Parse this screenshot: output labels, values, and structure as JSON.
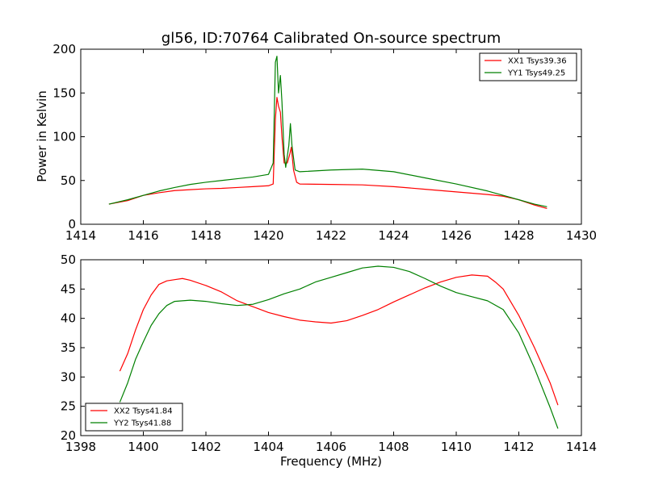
{
  "chart_data": [
    {
      "type": "line",
      "title": "gl56, ID:70764 Calibrated On-source spectrum",
      "xlabel": "",
      "ylabel": "Power in Kelvin",
      "xlim": [
        1414,
        1430
      ],
      "ylim": [
        0,
        200
      ],
      "xticks": [
        "1414",
        "1416",
        "1418",
        "1420",
        "1422",
        "1424",
        "1426",
        "1428",
        "1430"
      ],
      "yticks": [
        "0",
        "50",
        "100",
        "150",
        "200"
      ],
      "legend_position": "top-right",
      "series": [
        {
          "name": "XX1 Tsys39.36",
          "color": "#ff0000",
          "points": [
            [
              1414.9,
              23
            ],
            [
              1415.5,
              27
            ],
            [
              1416,
              33
            ],
            [
              1416.5,
              36
            ],
            [
              1417,
              38.5
            ],
            [
              1417.5,
              39.5
            ],
            [
              1418,
              40.5
            ],
            [
              1418.5,
              41
            ],
            [
              1419,
              42
            ],
            [
              1419.5,
              43
            ],
            [
              1420,
              44
            ],
            [
              1420.15,
              46
            ],
            [
              1420.22,
              120
            ],
            [
              1420.27,
              145
            ],
            [
              1420.32,
              135
            ],
            [
              1420.38,
              128
            ],
            [
              1420.43,
              100
            ],
            [
              1420.5,
              70
            ],
            [
              1420.6,
              70
            ],
            [
              1420.68,
              80
            ],
            [
              1420.73,
              88
            ],
            [
              1420.8,
              62
            ],
            [
              1420.9,
              48
            ],
            [
              1421,
              46
            ],
            [
              1422,
              45.5
            ],
            [
              1423,
              45
            ],
            [
              1424,
              43
            ],
            [
              1425,
              40
            ],
            [
              1426,
              37
            ],
            [
              1427,
              34
            ],
            [
              1427.5,
              32
            ],
            [
              1428,
              28
            ],
            [
              1428.5,
              22
            ],
            [
              1428.9,
              18
            ]
          ]
        },
        {
          "name": "YY1 Tsys49.25",
          "color": "#008000",
          "points": [
            [
              1414.9,
              23
            ],
            [
              1415.5,
              28
            ],
            [
              1416,
              33
            ],
            [
              1416.5,
              38
            ],
            [
              1417,
              42
            ],
            [
              1417.5,
              45.5
            ],
            [
              1418,
              48
            ],
            [
              1418.5,
              50
            ],
            [
              1419,
              52
            ],
            [
              1419.5,
              54
            ],
            [
              1420,
              57
            ],
            [
              1420.15,
              70
            ],
            [
              1420.22,
              185
            ],
            [
              1420.27,
              192
            ],
            [
              1420.32,
              150
            ],
            [
              1420.38,
              170
            ],
            [
              1420.43,
              140
            ],
            [
              1420.5,
              80
            ],
            [
              1420.55,
              65
            ],
            [
              1420.65,
              90
            ],
            [
              1420.7,
              115
            ],
            [
              1420.75,
              90
            ],
            [
              1420.85,
              62
            ],
            [
              1421,
              60
            ],
            [
              1422,
              62
            ],
            [
              1423,
              63
            ],
            [
              1424,
              60
            ],
            [
              1425,
              53
            ],
            [
              1426,
              46
            ],
            [
              1427,
              38
            ],
            [
              1427.5,
              33
            ],
            [
              1428,
              28
            ],
            [
              1428.5,
              23
            ],
            [
              1428.9,
              20
            ]
          ]
        }
      ]
    },
    {
      "type": "line",
      "title": "",
      "xlabel": "Frequency (MHz)",
      "ylabel": "",
      "xlim": [
        1398,
        1414
      ],
      "ylim": [
        20,
        50
      ],
      "xticks": [
        "1398",
        "1400",
        "1402",
        "1404",
        "1406",
        "1408",
        "1410",
        "1412",
        "1414"
      ],
      "yticks": [
        "20",
        "25",
        "30",
        "35",
        "40",
        "45",
        "50"
      ],
      "legend_position": "bottom-left",
      "series": [
        {
          "name": "XX2 Tsys41.84",
          "color": "#ff0000",
          "points": [
            [
              1399.25,
              31
            ],
            [
              1399.5,
              34
            ],
            [
              1399.75,
              38
            ],
            [
              1400,
              41.5
            ],
            [
              1400.25,
              44
            ],
            [
              1400.5,
              45.8
            ],
            [
              1400.75,
              46.4
            ],
            [
              1401,
              46.6
            ],
            [
              1401.25,
              46.8
            ],
            [
              1401.5,
              46.5
            ],
            [
              1402,
              45.6
            ],
            [
              1402.5,
              44.5
            ],
            [
              1403,
              43
            ],
            [
              1403.5,
              42
            ],
            [
              1404,
              41
            ],
            [
              1404.5,
              40.3
            ],
            [
              1405,
              39.7
            ],
            [
              1405.5,
              39.4
            ],
            [
              1406,
              39.2
            ],
            [
              1406.5,
              39.6
            ],
            [
              1407,
              40.5
            ],
            [
              1407.5,
              41.5
            ],
            [
              1408,
              42.8
            ],
            [
              1408.5,
              44
            ],
            [
              1409,
              45.2
            ],
            [
              1409.5,
              46.2
            ],
            [
              1410,
              47
            ],
            [
              1410.5,
              47.4
            ],
            [
              1411,
              47.2
            ],
            [
              1411.25,
              46.2
            ],
            [
              1411.5,
              45
            ],
            [
              1412,
              40.5
            ],
            [
              1412.5,
              35
            ],
            [
              1413,
              29
            ],
            [
              1413.25,
              25.2
            ]
          ]
        },
        {
          "name": "YY2 Tsys41.88",
          "color": "#008000",
          "points": [
            [
              1399.25,
              25.7
            ],
            [
              1399.5,
              29
            ],
            [
              1399.75,
              33
            ],
            [
              1400,
              36
            ],
            [
              1400.25,
              38.8
            ],
            [
              1400.5,
              40.8
            ],
            [
              1400.75,
              42.2
            ],
            [
              1401,
              42.9
            ],
            [
              1401.5,
              43.1
            ],
            [
              1402,
              42.9
            ],
            [
              1402.5,
              42.5
            ],
            [
              1403,
              42.2
            ],
            [
              1403.5,
              42.4
            ],
            [
              1404,
              43.2
            ],
            [
              1404.5,
              44.2
            ],
            [
              1405,
              45
            ],
            [
              1405.5,
              46.2
            ],
            [
              1406,
              47
            ],
            [
              1406.5,
              47.8
            ],
            [
              1407,
              48.6
            ],
            [
              1407.5,
              48.9
            ],
            [
              1408,
              48.7
            ],
            [
              1408.5,
              48
            ],
            [
              1409,
              46.8
            ],
            [
              1409.5,
              45.5
            ],
            [
              1410,
              44.4
            ],
            [
              1410.5,
              43.7
            ],
            [
              1411,
              43
            ],
            [
              1411.5,
              41.5
            ],
            [
              1412,
              37.5
            ],
            [
              1412.5,
              31.5
            ],
            [
              1413,
              24.8
            ],
            [
              1413.25,
              21.2
            ]
          ]
        }
      ]
    }
  ]
}
